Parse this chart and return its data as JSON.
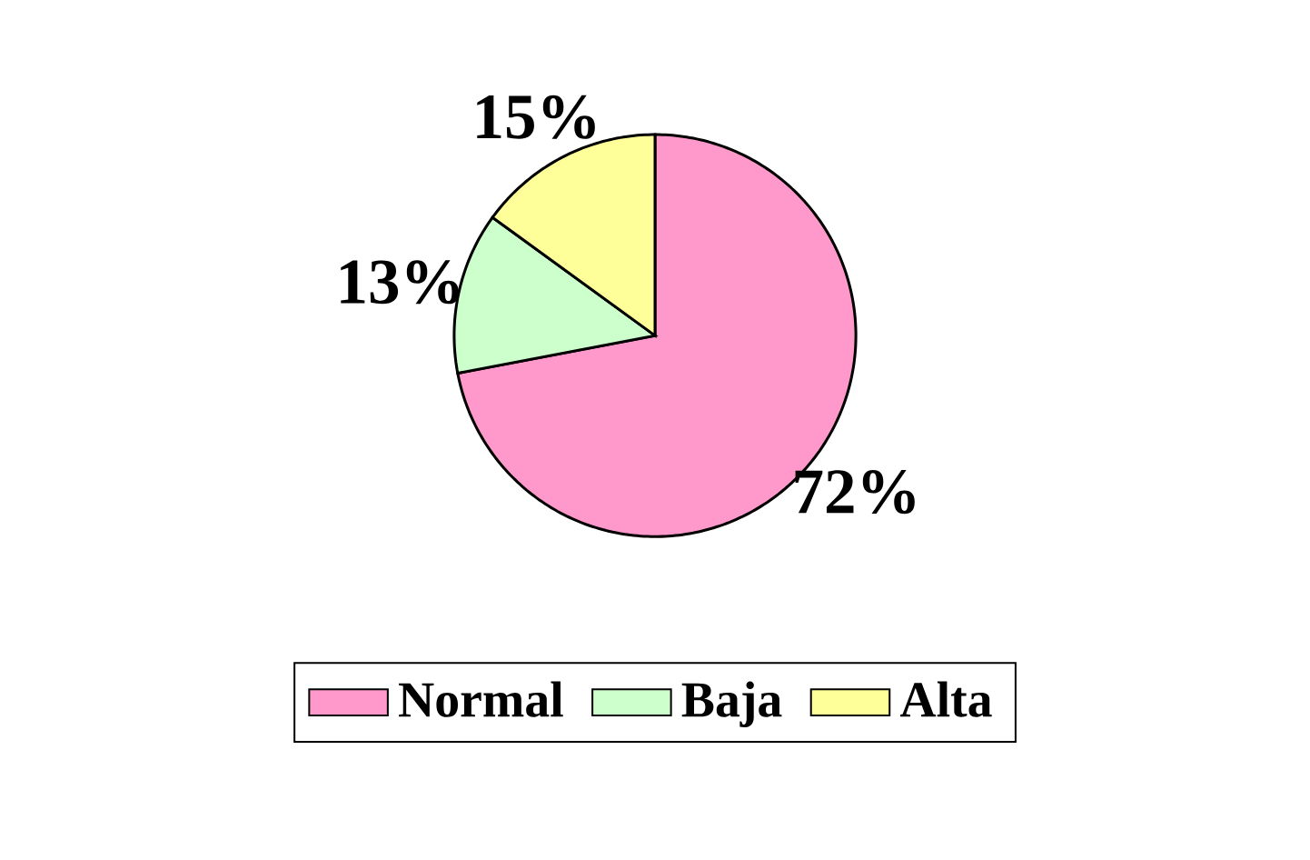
{
  "chart_data": {
    "type": "pie",
    "categories": [
      "Normal",
      "Baja",
      "Alta"
    ],
    "values": [
      72,
      13,
      15
    ],
    "colors": [
      "#ff99cc",
      "#ccffcc",
      "#ffff99"
    ],
    "value_labels": [
      "72%",
      "13%",
      "15%"
    ],
    "legend": "bottom"
  }
}
